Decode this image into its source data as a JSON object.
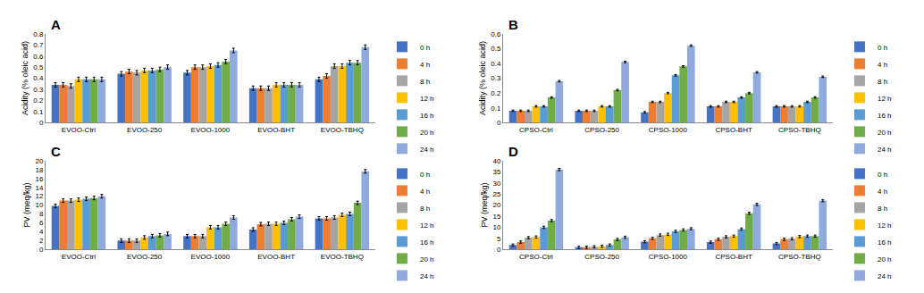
{
  "chart_data": [
    {
      "type": "bar",
      "title": "A",
      "y_label": "Acidity (% oleic acid)",
      "categories": [
        "EVOO-Ctrl",
        "EVOO-250",
        "EVOO-1000",
        "EVOO-BHT",
        "EVOO-TBHQ"
      ],
      "ylim": [
        0,
        0.8
      ],
      "yticks": [
        0,
        0.1,
        0.2,
        0.3,
        0.4,
        0.5,
        0.6,
        0.7,
        0.8
      ],
      "grid": false,
      "legend": "right",
      "series": [
        {
          "name": "0 h",
          "color": "#4472c4",
          "values": [
            0.34,
            0.44,
            0.45,
            0.31,
            0.39
          ],
          "errors": [
            0.02,
            0.02,
            0.02,
            0.02,
            0.02
          ]
        },
        {
          "name": "4 h",
          "color": "#ed7d31",
          "values": [
            0.34,
            0.46,
            0.5,
            0.31,
            0.42
          ],
          "errors": [
            0.02,
            0.02,
            0.02,
            0.02,
            0.02
          ]
        },
        {
          "name": "8 h",
          "color": "#a5a5a5",
          "values": [
            0.33,
            0.45,
            0.5,
            0.31,
            0.51
          ],
          "errors": [
            0.02,
            0.02,
            0.02,
            0.02,
            0.02
          ]
        },
        {
          "name": "12 h",
          "color": "#ffc000",
          "values": [
            0.39,
            0.47,
            0.51,
            0.34,
            0.51
          ],
          "errors": [
            0.02,
            0.02,
            0.02,
            0.02,
            0.02
          ]
        },
        {
          "name": "16 h",
          "color": "#5b9bd5",
          "values": [
            0.39,
            0.47,
            0.52,
            0.34,
            0.54
          ],
          "errors": [
            0.02,
            0.02,
            0.02,
            0.02,
            0.02
          ]
        },
        {
          "name": "20 h",
          "color": "#70ad47",
          "values": [
            0.39,
            0.48,
            0.55,
            0.34,
            0.54
          ],
          "errors": [
            0.02,
            0.02,
            0.02,
            0.02,
            0.02
          ]
        },
        {
          "name": "24 h",
          "color": "#8faadc",
          "values": [
            0.39,
            0.5,
            0.65,
            0.34,
            0.68
          ],
          "errors": [
            0.02,
            0.02,
            0.02,
            0.02,
            0.02
          ]
        }
      ]
    },
    {
      "type": "bar",
      "title": "B",
      "y_label": "Acidity (% oleic acid)",
      "categories": [
        "CPSO-Ctrl",
        "CPSO-250",
        "CPSO-1000",
        "CPSO-BHT",
        "CPSO-TBHQ"
      ],
      "ylim": [
        0,
        0.6
      ],
      "yticks": [
        0,
        0.1,
        0.2,
        0.3,
        0.4,
        0.5,
        0.6
      ],
      "grid": false,
      "legend": "right",
      "series": [
        {
          "name": "0 h",
          "color": "#4472c4",
          "values": [
            0.08,
            0.08,
            0.07,
            0.11,
            0.11
          ],
          "errors": [
            0.005,
            0.005,
            0.005,
            0.005,
            0.005
          ]
        },
        {
          "name": "4 h",
          "color": "#ed7d31",
          "values": [
            0.08,
            0.08,
            0.14,
            0.11,
            0.11
          ],
          "errors": [
            0.005,
            0.005,
            0.005,
            0.005,
            0.005
          ]
        },
        {
          "name": "8 h",
          "color": "#a5a5a5",
          "values": [
            0.08,
            0.08,
            0.14,
            0.14,
            0.11
          ],
          "errors": [
            0.005,
            0.005,
            0.005,
            0.005,
            0.005
          ]
        },
        {
          "name": "12 h",
          "color": "#ffc000",
          "values": [
            0.11,
            0.11,
            0.2,
            0.14,
            0.11
          ],
          "errors": [
            0.005,
            0.005,
            0.005,
            0.005,
            0.005
          ]
        },
        {
          "name": "16 h",
          "color": "#5b9bd5",
          "values": [
            0.11,
            0.11,
            0.32,
            0.17,
            0.14
          ],
          "errors": [
            0.005,
            0.005,
            0.005,
            0.005,
            0.005
          ]
        },
        {
          "name": "20 h",
          "color": "#70ad47",
          "values": [
            0.17,
            0.22,
            0.38,
            0.2,
            0.17
          ],
          "errors": [
            0.005,
            0.005,
            0.005,
            0.005,
            0.005
          ]
        },
        {
          "name": "24 h",
          "color": "#8faadc",
          "values": [
            0.28,
            0.41,
            0.52,
            0.34,
            0.31
          ],
          "errors": [
            0.005,
            0.005,
            0.005,
            0.005,
            0.005
          ]
        }
      ]
    },
    {
      "type": "bar",
      "title": "C",
      "y_label": "PV (meq/kg)",
      "categories": [
        "EVOO-Ctrl",
        "EVOO-250",
        "EVOO-1000",
        "EVOO-BHT",
        "EVOO-TBHQ"
      ],
      "ylim": [
        0,
        20
      ],
      "yticks": [
        0,
        2,
        4,
        6,
        8,
        10,
        12,
        14,
        16,
        18,
        20
      ],
      "grid": false,
      "legend": "right",
      "series": [
        {
          "name": "0 h",
          "color": "#4472c4",
          "values": [
            9.8,
            2.0,
            3.0,
            4.5,
            7.0
          ],
          "errors": [
            0.4,
            0.4,
            0.4,
            0.4,
            0.4
          ]
        },
        {
          "name": "4 h",
          "color": "#ed7d31",
          "values": [
            11.0,
            2.0,
            3.0,
            5.7,
            7.0
          ],
          "errors": [
            0.4,
            0.4,
            0.4,
            0.4,
            0.4
          ]
        },
        {
          "name": "8 h",
          "color": "#a5a5a5",
          "values": [
            11.0,
            2.0,
            3.0,
            5.8,
            7.2
          ],
          "errors": [
            0.4,
            0.4,
            0.4,
            0.4,
            0.4
          ]
        },
        {
          "name": "12 h",
          "color": "#ffc000",
          "values": [
            11.2,
            2.7,
            5.0,
            5.8,
            7.8
          ],
          "errors": [
            0.4,
            0.4,
            0.4,
            0.4,
            0.4
          ]
        },
        {
          "name": "16 h",
          "color": "#5b9bd5",
          "values": [
            11.4,
            3.0,
            5.0,
            6.0,
            8.0
          ],
          "errors": [
            0.4,
            0.4,
            0.4,
            0.4,
            0.4
          ]
        },
        {
          "name": "20 h",
          "color": "#70ad47",
          "values": [
            11.6,
            3.2,
            5.8,
            6.8,
            10.5
          ],
          "errors": [
            0.4,
            0.4,
            0.4,
            0.4,
            0.4
          ]
        },
        {
          "name": "24 h",
          "color": "#8faadc",
          "values": [
            12.0,
            3.5,
            7.2,
            7.4,
            17.6
          ],
          "errors": [
            0.4,
            0.4,
            0.4,
            0.4,
            0.4
          ]
        }
      ]
    },
    {
      "type": "bar",
      "title": "D",
      "y_label": "PV (meq/kg)",
      "categories": [
        "CPSO-Ctrl",
        "CPSO-250",
        "CPSO-1000",
        "CPSO-BHT",
        "CPSO-TBHQ"
      ],
      "ylim": [
        0,
        40
      ],
      "yticks": [
        0,
        5,
        10,
        15,
        20,
        25,
        30,
        35,
        40
      ],
      "grid": false,
      "legend": "right",
      "series": [
        {
          "name": "0 h",
          "color": "#4472c4",
          "values": [
            2.0,
            1.0,
            3.5,
            3.3,
            2.7
          ],
          "errors": [
            0.5,
            0.5,
            0.5,
            0.5,
            0.5
          ]
        },
        {
          "name": "4 h",
          "color": "#ed7d31",
          "values": [
            3.3,
            1.0,
            5.0,
            4.6,
            4.6
          ],
          "errors": [
            0.5,
            0.5,
            0.5,
            0.5,
            0.5
          ]
        },
        {
          "name": "8 h",
          "color": "#a5a5a5",
          "values": [
            5.3,
            1.2,
            6.5,
            5.7,
            4.8
          ],
          "errors": [
            0.5,
            0.5,
            0.5,
            0.5,
            0.5
          ]
        },
        {
          "name": "12 h",
          "color": "#ffc000",
          "values": [
            5.6,
            1.4,
            6.8,
            6.0,
            5.8
          ],
          "errors": [
            0.5,
            0.5,
            0.5,
            0.5,
            0.5
          ]
        },
        {
          "name": "16 h",
          "color": "#5b9bd5",
          "values": [
            10.0,
            2.0,
            8.2,
            9.2,
            6.0
          ],
          "errors": [
            0.5,
            0.5,
            0.5,
            0.5,
            0.5
          ]
        },
        {
          "name": "20 h",
          "color": "#70ad47",
          "values": [
            13.0,
            4.5,
            8.8,
            16.3,
            6.0
          ],
          "errors": [
            0.5,
            0.5,
            0.5,
            0.5,
            0.5
          ]
        },
        {
          "name": "24 h",
          "color": "#8faadc",
          "values": [
            36.0,
            5.5,
            9.3,
            20.3,
            22.0
          ],
          "errors": [
            0.5,
            0.5,
            0.5,
            0.5,
            0.5
          ]
        }
      ]
    }
  ]
}
